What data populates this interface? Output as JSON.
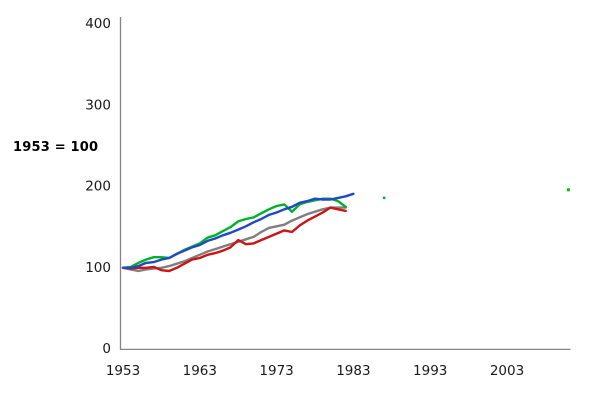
{
  "colors": {
    "axis": "#858585",
    "tick_text": "#1a1a1a",
    "background": "#ffffff",
    "series_green": "#00b228",
    "series_blue": "#2149c5",
    "series_gray": "#7f7f7f",
    "series_red": "#cc1417",
    "stray_dot_green": "#00c000"
  },
  "chart_data": {
    "type": "line",
    "title": "",
    "xlabel": "",
    "ylabel_note": "1953 = 100",
    "x_ticks": [
      "1953",
      "1963",
      "1973",
      "1983",
      "1993",
      "2003"
    ],
    "y_ticks": [
      "0",
      "100",
      "200",
      "300",
      "400"
    ],
    "xlim": [
      1953,
      2012
    ],
    "ylim": [
      0,
      400
    ],
    "grid": false,
    "legend": "none",
    "series": [
      {
        "name": "gray-series",
        "color": "#7f7f7f",
        "years": [
          1953,
          1954,
          1955,
          1956,
          1957,
          1958,
          1959,
          1960,
          1961,
          1962,
          1963,
          1964,
          1965,
          1966,
          1967,
          1968,
          1969,
          1970,
          1971,
          1972,
          1973,
          1974,
          1975,
          1976,
          1977,
          1978,
          1979,
          1980,
          1981,
          1982
        ],
        "values": [
          100,
          98,
          96,
          98,
          99,
          100,
          102,
          105,
          108,
          112,
          116,
          120,
          123,
          126,
          129,
          132,
          135,
          138,
          144,
          149,
          151,
          153,
          158,
          162,
          166,
          169,
          172,
          174,
          174,
          174
        ]
      },
      {
        "name": "red-series",
        "color": "#cc1417",
        "years": [
          1953,
          1954,
          1955,
          1956,
          1957,
          1958,
          1959,
          1960,
          1961,
          1962,
          1963,
          1964,
          1965,
          1966,
          1967,
          1968,
          1969,
          1970,
          1971,
          1972,
          1973,
          1974,
          1975,
          1976,
          1977,
          1978,
          1979,
          1980,
          1981,
          1982
        ],
        "values": [
          100,
          99,
          100,
          100,
          101,
          97,
          96,
          100,
          105,
          110,
          112,
          116,
          118,
          121,
          125,
          134,
          129,
          130,
          134,
          138,
          142,
          146,
          144,
          152,
          158,
          163,
          168,
          174,
          172,
          170
        ]
      },
      {
        "name": "green-series",
        "color": "#00b228",
        "years": [
          1953,
          1954,
          1955,
          1956,
          1957,
          1958,
          1959,
          1960,
          1961,
          1962,
          1963,
          1964,
          1965,
          1966,
          1967,
          1968,
          1969,
          1970,
          1971,
          1972,
          1973,
          1974,
          1975,
          1976,
          1977,
          1978,
          1979,
          1980,
          1981,
          1982
        ],
        "values": [
          100,
          101,
          106,
          110,
          113,
          113,
          112,
          117,
          122,
          126,
          130,
          137,
          140,
          145,
          150,
          157,
          160,
          162,
          167,
          172,
          176,
          178,
          169,
          178,
          181,
          183,
          185,
          185,
          182,
          175
        ]
      },
      {
        "name": "blue-series",
        "color": "#2149c5",
        "years": [
          1953,
          1954,
          1955,
          1956,
          1957,
          1958,
          1959,
          1960,
          1961,
          1962,
          1963,
          1964,
          1965,
          1966,
          1967,
          1968,
          1969,
          1970,
          1971,
          1972,
          1973,
          1974,
          1975,
          1976,
          1977,
          1978,
          1979,
          1980,
          1981,
          1982,
          1983
        ],
        "values": [
          100,
          100,
          102,
          106,
          107,
          110,
          112,
          117,
          121,
          125,
          128,
          133,
          136,
          140,
          143,
          147,
          151,
          156,
          160,
          165,
          168,
          172,
          175,
          180,
          182,
          185,
          184,
          184,
          186,
          188,
          191
        ]
      }
    ],
    "isolated_points": [
      {
        "series": "green",
        "color": "#00b228",
        "year": 1987,
        "value": 186,
        "size": 2.5
      },
      {
        "series": "green",
        "color": "#00c000",
        "year": 2011,
        "value": 196,
        "size": 3
      }
    ]
  }
}
